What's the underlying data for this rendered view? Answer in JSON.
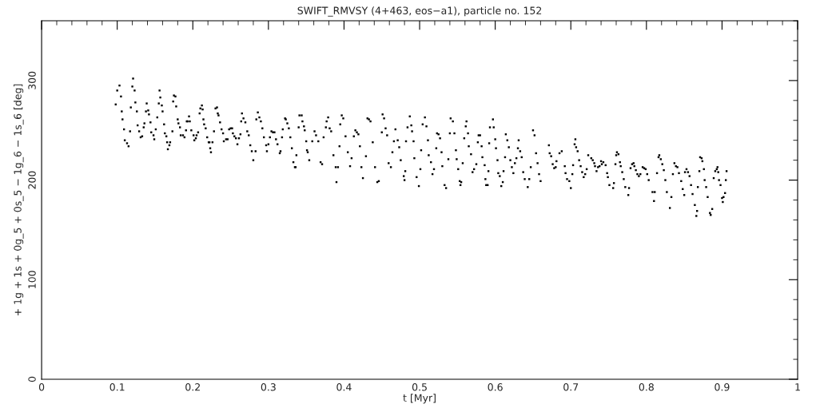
{
  "chart_data": {
    "type": "scatter",
    "title": "SWIFT_RMVSY (4+463, eos−a1), particle no. 152",
    "xlabel": "t [Myr]",
    "ylabel": "+ 1g + 1s + 0g_5 + 0s_5 − 1g_6 − 1s_6 [deg]",
    "xlim": [
      0,
      1
    ],
    "ylim": [
      0,
      360
    ],
    "xticks": [
      0,
      0.1,
      0.2,
      0.3,
      0.4,
      0.5,
      0.6,
      0.7,
      0.8,
      0.9,
      1
    ],
    "yticks": [
      0,
      100,
      200,
      300
    ],
    "grid": false,
    "marker": "square",
    "series": [
      {
        "color": "#000000",
        "x": [
          0.098,
          0.1,
          0.103,
          0.105,
          0.106,
          0.107,
          0.109,
          0.11,
          0.113,
          0.115,
          0.117,
          0.118,
          0.12,
          0.121,
          0.123,
          0.124,
          0.126,
          0.127,
          0.129,
          0.131,
          0.133,
          0.135,
          0.136,
          0.138,
          0.139,
          0.141,
          0.142,
          0.144,
          0.145,
          0.148,
          0.149,
          0.151,
          0.153,
          0.155,
          0.156,
          0.157,
          0.159,
          0.16,
          0.162,
          0.163,
          0.165,
          0.166,
          0.167,
          0.169,
          0.17,
          0.173,
          0.174,
          0.175,
          0.177,
          0.178,
          0.18,
          0.181,
          0.183,
          0.184,
          0.187,
          0.189,
          0.191,
          0.192,
          0.193,
          0.195,
          0.196,
          0.198,
          0.201,
          0.202,
          0.204,
          0.205,
          0.207,
          0.209,
          0.21,
          0.212,
          0.213,
          0.214,
          0.215,
          0.217,
          0.219,
          0.221,
          0.222,
          0.223,
          0.224,
          0.226,
          0.228,
          0.23,
          0.232,
          0.233,
          0.234,
          0.236,
          0.238,
          0.24,
          0.241,
          0.244,
          0.246,
          0.248,
          0.25,
          0.252,
          0.253,
          0.255,
          0.257,
          0.259,
          0.261,
          0.263,
          0.264,
          0.265,
          0.267,
          0.2695,
          0.272,
          0.274,
          0.276,
          0.278,
          0.28,
          0.283,
          0.284,
          0.286,
          0.288,
          0.29,
          0.292,
          0.294,
          0.297,
          0.298,
          0.3,
          0.302,
          0.304,
          0.306,
          0.308,
          0.31,
          0.312,
          0.315,
          0.316,
          0.318,
          0.319,
          0.322,
          0.323,
          0.325,
          0.327,
          0.329,
          0.331,
          0.333,
          0.335,
          0.336,
          0.337,
          0.34,
          0.341,
          0.344,
          0.345,
          0.347,
          0.348,
          0.35,
          0.351,
          0.352,
          0.354,
          0.358,
          0.361,
          0.363,
          0.366,
          0.369,
          0.371,
          0.373,
          0.376,
          0.377,
          0.379,
          0.381,
          0.383,
          0.386,
          0.389,
          0.39,
          0.392,
          0.394,
          0.395,
          0.397,
          0.399,
          0.402,
          0.405,
          0.408,
          0.41,
          0.413,
          0.415,
          0.417,
          0.419,
          0.421,
          0.423,
          0.425,
          0.429,
          0.431,
          0.433,
          0.435,
          0.438,
          0.441,
          0.444,
          0.446,
          0.45,
          0.451,
          0.453,
          0.455,
          0.457,
          0.459,
          0.462,
          0.464,
          0.466,
          0.468,
          0.471,
          0.473,
          0.475,
          0.479,
          0.48,
          0.481,
          0.482,
          0.484,
          0.487,
          0.489,
          0.49,
          0.492,
          0.493,
          0.496,
          0.499,
          0.501,
          0.502,
          0.504,
          0.507,
          0.509,
          0.511,
          0.512,
          0.515,
          0.517,
          0.519,
          0.522,
          0.523,
          0.525,
          0.527,
          0.529,
          0.53,
          0.533,
          0.535,
          0.538,
          0.54,
          0.541,
          0.544,
          0.546,
          0.548,
          0.549,
          0.551,
          0.553,
          0.554,
          0.555,
          0.557,
          0.559,
          0.561,
          0.562,
          0.564,
          0.565,
          0.568,
          0.57,
          0.572,
          0.575,
          0.577,
          0.578,
          0.58,
          0.582,
          0.583,
          0.586,
          0.587,
          0.588,
          0.59,
          0.591,
          0.592,
          0.593,
          0.597,
          0.598,
          0.6,
          0.601,
          0.603,
          0.604,
          0.606,
          0.608,
          0.61,
          0.611,
          0.613,
          0.614,
          0.616,
          0.618,
          0.62,
          0.622,
          0.624,
          0.626,
          0.628,
          0.63,
          0.631,
          0.633,
          0.635,
          0.637,
          0.639,
          0.643,
          0.645,
          0.647,
          0.65,
          0.652,
          0.654,
          0.656,
          0.658,
          0.66,
          0.671,
          0.672,
          0.674,
          0.676,
          0.678,
          0.68,
          0.681,
          0.685,
          0.688,
          0.692,
          0.693,
          0.695,
          0.698,
          0.7,
          0.702,
          0.703,
          0.705,
          0.706,
          0.707,
          0.709,
          0.711,
          0.713,
          0.715,
          0.717,
          0.719,
          0.721,
          0.723,
          0.727,
          0.729,
          0.731,
          0.732,
          0.734,
          0.736,
          0.738,
          0.74,
          0.741,
          0.743,
          0.746,
          0.748,
          0.749,
          0.751,
          0.756,
          0.757,
          0.759,
          0.76,
          0.761,
          0.763,
          0.765,
          0.766,
          0.768,
          0.77,
          0.772,
          0.776,
          0.777,
          0.779,
          0.781,
          0.783,
          0.784,
          0.786,
          0.788,
          0.79,
          0.792,
          0.795,
          0.797,
          0.799,
          0.801,
          0.803,
          0.808,
          0.81,
          0.811,
          0.814,
          0.816,
          0.817,
          0.819,
          0.821,
          0.823,
          0.825,
          0.827,
          0.831,
          0.833,
          0.835,
          0.837,
          0.839,
          0.841,
          0.843,
          0.846,
          0.848,
          0.85,
          0.851,
          0.853,
          0.855,
          0.857,
          0.859,
          0.861,
          0.864,
          0.866,
          0.867,
          0.868,
          0.87,
          0.871,
          0.873,
          0.874,
          0.876,
          0.877,
          0.879,
          0.881,
          0.884,
          0.885,
          0.887,
          0.889,
          0.891,
          0.893,
          0.894,
          0.895,
          0.896,
          0.898,
          0.9,
          0.901,
          0.902,
          0.904,
          0.905,
          0.906
        ],
        "values": [
          276,
          290,
          295,
          284,
          269,
          261,
          251,
          240,
          237,
          234,
          249,
          273,
          294,
          302,
          290,
          278,
          269,
          255,
          249,
          243,
          244,
          253,
          257,
          269,
          277,
          270,
          266,
          258,
          248,
          245,
          241,
          251,
          263,
          277,
          290,
          283,
          275,
          269,
          256,
          247,
          244,
          238,
          231,
          235,
          238,
          249,
          279,
          285,
          284,
          274,
          261,
          257,
          253,
          245,
          245,
          243,
          250,
          259,
          259,
          264,
          259,
          250,
          245,
          240,
          242,
          245,
          248,
          267,
          272,
          275,
          271,
          261,
          256,
          252,
          243,
          238,
          238,
          232,
          228,
          238,
          249,
          272,
          273,
          267,
          265,
          258,
          251,
          247,
          239,
          241,
          241,
          251,
          252,
          252,
          247,
          244,
          242,
          236,
          242,
          246,
          259,
          267,
          262,
          258,
          249,
          245,
          235,
          229,
          220,
          229,
          261,
          268,
          263,
          259,
          252,
          243,
          235,
          229,
          236,
          243,
          249,
          248,
          248,
          241,
          236,
          227,
          229,
          243,
          251,
          262,
          261,
          257,
          252,
          243,
          232,
          218,
          213,
          213,
          225,
          253,
          265,
          265,
          259,
          254,
          250,
          239,
          230,
          228,
          220,
          239,
          249,
          245,
          239,
          218,
          216,
          243,
          253,
          259,
          263,
          252,
          249,
          225,
          213,
          198,
          213,
          234,
          256,
          265,
          262,
          244,
          228,
          214,
          222,
          244,
          250,
          248,
          246,
          234,
          213,
          202,
          224,
          262,
          261,
          259,
          238,
          213,
          198,
          199,
          248,
          266,
          262,
          252,
          245,
          217,
          213,
          228,
          239,
          251,
          240,
          233,
          220,
          204,
          200,
          209,
          239,
          253,
          264,
          255,
          249,
          239,
          222,
          203,
          194,
          211,
          230,
          256,
          263,
          254,
          240,
          225,
          218,
          206,
          211,
          232,
          247,
          246,
          242,
          228,
          214,
          195,
          192,
          221,
          247,
          262,
          259,
          247,
          230,
          221,
          211,
          199,
          195,
          198,
          217,
          242,
          254,
          259,
          247,
          234,
          226,
          208,
          211,
          216,
          238,
          245,
          245,
          234,
          223,
          215,
          201,
          195,
          195,
          209,
          237,
          253,
          261,
          253,
          241,
          232,
          220,
          207,
          204,
          194,
          198,
          209,
          223,
          246,
          240,
          233,
          220,
          213,
          207,
          217,
          222,
          232,
          240,
          229,
          223,
          208,
          201,
          193,
          201,
          213,
          250,
          245,
          227,
          217,
          206,
          199,
          235,
          227,
          224,
          216,
          212,
          213,
          219,
          227,
          229,
          214,
          207,
          201,
          199,
          192,
          206,
          215,
          236,
          241,
          233,
          229,
          220,
          214,
          208,
          203,
          206,
          211,
          225,
          222,
          220,
          217,
          214,
          209,
          213,
          214,
          219,
          216,
          218,
          215,
          207,
          203,
          195,
          192,
          197,
          216,
          225,
          228,
          226,
          218,
          214,
          208,
          201,
          193,
          185,
          192,
          212,
          216,
          217,
          214,
          210,
          206,
          204,
          206,
          213,
          212,
          211,
          206,
          200,
          188,
          179,
          188,
          207,
          223,
          225,
          221,
          216,
          210,
          200,
          188,
          172,
          183,
          206,
          217,
          214,
          213,
          207,
          199,
          191,
          185,
          208,
          211,
          208,
          204,
          195,
          186,
          175,
          164,
          169,
          193,
          209,
          223,
          222,
          219,
          211,
          200,
          193,
          183,
          167,
          165,
          171,
          202,
          209,
          211,
          213,
          208,
          200,
          195,
          182,
          178,
          183,
          187,
          200,
          209
        ]
      }
    ]
  }
}
